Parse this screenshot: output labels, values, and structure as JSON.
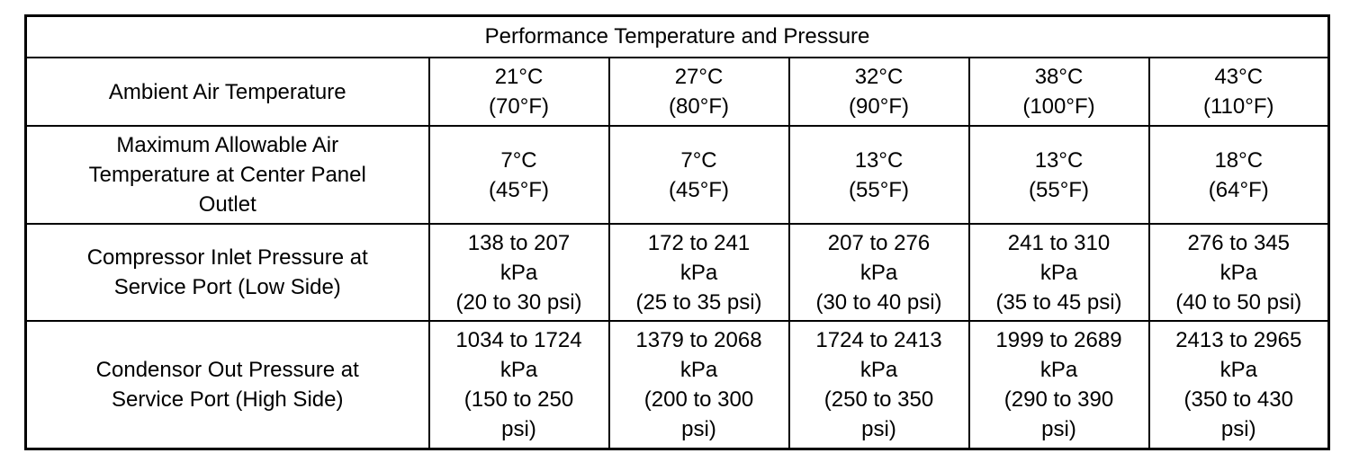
{
  "table": {
    "title": "Performance Temperature and Pressure",
    "rows": [
      {
        "label": [
          "Ambient Air Temperature"
        ],
        "values": [
          [
            "21°C",
            "(70°F)"
          ],
          [
            "27°C",
            "(80°F)"
          ],
          [
            "32°C",
            "(90°F)"
          ],
          [
            "38°C",
            "(100°F)"
          ],
          [
            "43°C",
            "(110°F)"
          ]
        ]
      },
      {
        "label": [
          "Maximum Allowable Air",
          "Temperature at Center Panel",
          "Outlet"
        ],
        "values": [
          [
            "7°C",
            "(45°F)"
          ],
          [
            "7°C",
            "(45°F)"
          ],
          [
            "13°C",
            "(55°F)"
          ],
          [
            "13°C",
            "(55°F)"
          ],
          [
            "18°C",
            "(64°F)"
          ]
        ]
      },
      {
        "label": [
          "Compressor Inlet Pressure at",
          "Service Port (Low Side)"
        ],
        "values": [
          [
            "138 to 207",
            "kPa",
            "(20 to 30 psi)"
          ],
          [
            "172 to 241",
            "kPa",
            "(25 to 35 psi)"
          ],
          [
            "207 to 276",
            "kPa",
            "(30 to 40 psi)"
          ],
          [
            "241 to 310",
            "kPa",
            "(35 to 45 psi)"
          ],
          [
            "276 to 345",
            "kPa",
            "(40 to 50 psi)"
          ]
        ]
      },
      {
        "label": [
          "Condensor Out Pressure at",
          "Service Port (High Side)"
        ],
        "values": [
          [
            "1034 to 1724",
            "kPa",
            "(150 to 250",
            "psi)"
          ],
          [
            "1379 to 2068",
            "kPa",
            "(200 to 300",
            "psi)"
          ],
          [
            "1724 to 2413",
            "kPa",
            "(250 to 350",
            "psi)"
          ],
          [
            "1999 to 2689",
            "kPa",
            "(290 to 390",
            "psi)"
          ],
          [
            "2413 to 2965",
            "kPa",
            "(350 to 430",
            "psi)"
          ]
        ]
      }
    ]
  }
}
